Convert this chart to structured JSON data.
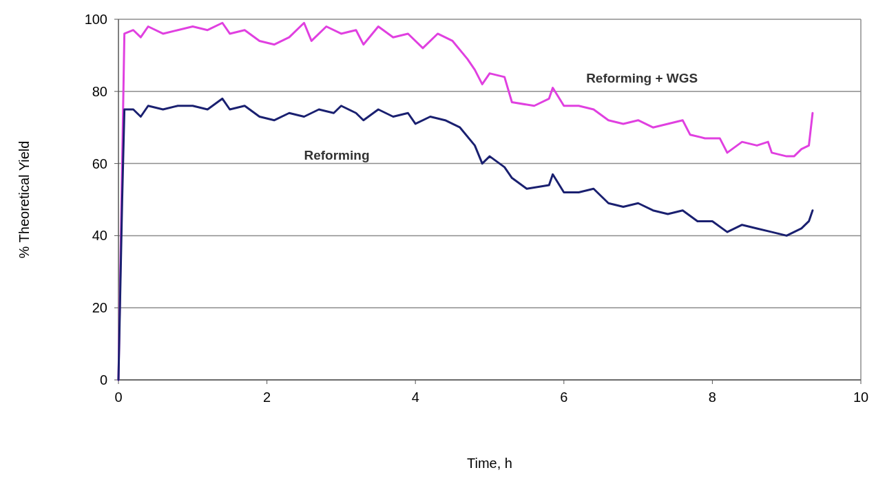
{
  "chart_data": {
    "type": "line",
    "xlabel": "Time, h",
    "ylabel": "% Theoretical Yield",
    "xlim": [
      0,
      10
    ],
    "xticks": [
      0,
      2,
      4,
      6,
      8,
      10
    ],
    "ylim": [
      0,
      100
    ],
    "yticks": [
      0,
      20,
      40,
      60,
      80,
      100
    ],
    "grid": "y",
    "legend": false,
    "marker": "none",
    "line_style": "solid",
    "series": [
      {
        "name": "Reforming + WGS",
        "color": "#e040e0",
        "x": [
          0,
          0.05,
          0.08,
          0.2,
          0.3,
          0.4,
          0.6,
          0.8,
          1.0,
          1.2,
          1.4,
          1.5,
          1.7,
          1.9,
          2.1,
          2.3,
          2.5,
          2.6,
          2.8,
          3.0,
          3.2,
          3.3,
          3.5,
          3.7,
          3.9,
          4.1,
          4.3,
          4.5,
          4.7,
          4.8,
          4.9,
          5.0,
          5.2,
          5.3,
          5.6,
          5.8,
          5.85,
          6.0,
          6.2,
          6.4,
          6.6,
          6.8,
          7.0,
          7.2,
          7.4,
          7.6,
          7.7,
          7.9,
          8.1,
          8.2,
          8.4,
          8.6,
          8.75,
          8.8,
          9.0,
          9.1,
          9.2,
          9.3,
          9.35
        ],
        "values": [
          0,
          60,
          96,
          97,
          95,
          98,
          96,
          97,
          98,
          97,
          99,
          96,
          97,
          94,
          93,
          95,
          99,
          94,
          98,
          96,
          97,
          93,
          98,
          95,
          96,
          92,
          96,
          94,
          89,
          86,
          82,
          85,
          84,
          77,
          76,
          78,
          81,
          76,
          76,
          75,
          72,
          71,
          72,
          70,
          71,
          72,
          68,
          67,
          67,
          63,
          66,
          65,
          66,
          63,
          62,
          62,
          64,
          65,
          74
        ]
      },
      {
        "name": "Reforming",
        "color": "#1a2070",
        "x": [
          0,
          0.05,
          0.08,
          0.2,
          0.3,
          0.4,
          0.6,
          0.8,
          1.0,
          1.2,
          1.4,
          1.5,
          1.7,
          1.9,
          2.1,
          2.3,
          2.5,
          2.7,
          2.9,
          3.0,
          3.2,
          3.3,
          3.5,
          3.7,
          3.9,
          4.0,
          4.2,
          4.4,
          4.6,
          4.8,
          4.9,
          5.0,
          5.2,
          5.3,
          5.5,
          5.8,
          5.85,
          6.0,
          6.2,
          6.4,
          6.6,
          6.8,
          7.0,
          7.2,
          7.4,
          7.6,
          7.8,
          8.0,
          8.2,
          8.4,
          8.6,
          8.8,
          9.0,
          9.2,
          9.3,
          9.35
        ],
        "values": [
          0,
          50,
          75,
          75,
          73,
          76,
          75,
          76,
          76,
          75,
          78,
          75,
          76,
          73,
          72,
          74,
          73,
          75,
          74,
          76,
          74,
          72,
          75,
          73,
          74,
          71,
          73,
          72,
          70,
          65,
          60,
          62,
          59,
          56,
          53,
          54,
          57,
          52,
          52,
          53,
          49,
          48,
          49,
          47,
          46,
          47,
          44,
          44,
          41,
          43,
          42,
          41,
          40,
          42,
          44,
          47
        ]
      }
    ]
  }
}
